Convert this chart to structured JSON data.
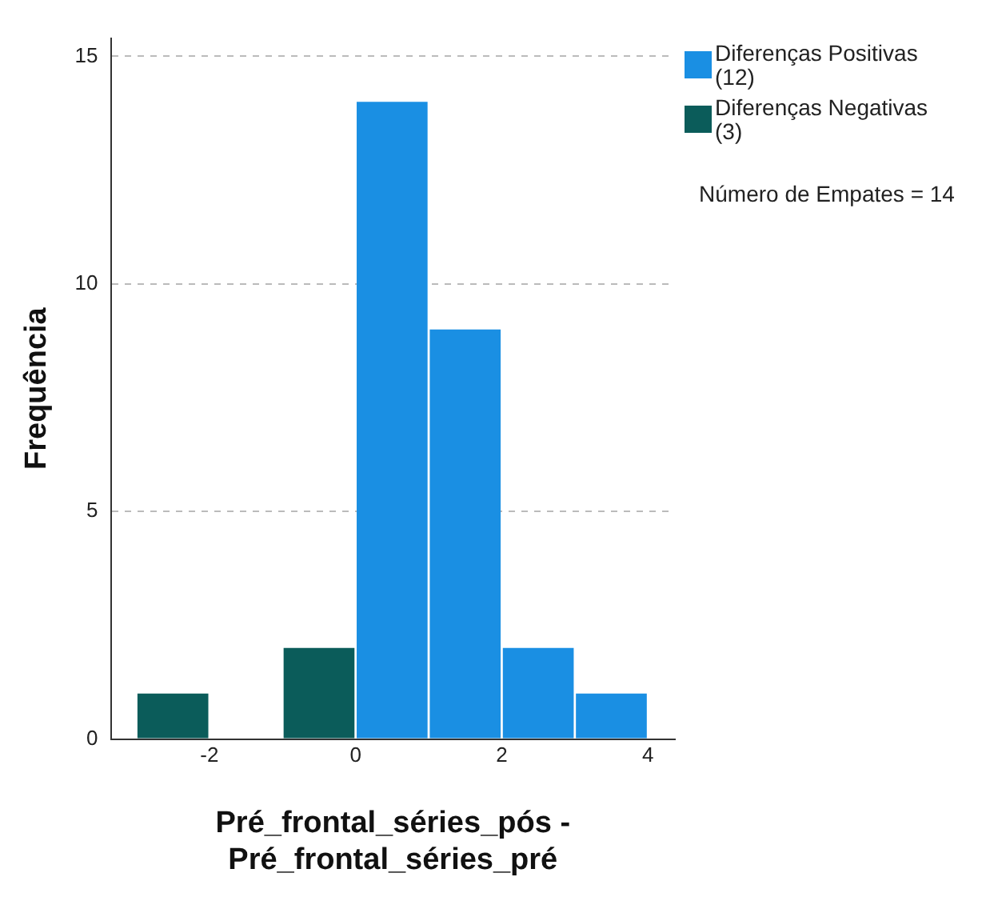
{
  "chart_data": {
    "type": "histogram",
    "xlabel": "Pré_frontal_séries_pós - Pré_frontal_séries_pré",
    "ylabel": "Frequência",
    "bins": [
      -3,
      -2,
      -1,
      0,
      1,
      2,
      3,
      4
    ],
    "series": [
      {
        "name": "Diferenças Positivas (12)",
        "color": "#1a8fe3",
        "values": [
          null,
          null,
          null,
          14,
          9,
          2,
          1
        ]
      },
      {
        "name": "Diferenças Negativas (3)",
        "color": "#0b5c5a",
        "values": [
          1,
          0,
          2,
          null,
          null,
          null,
          null
        ]
      }
    ],
    "xlim": [
      -3.35,
      4.37
    ],
    "xticks": [
      -2,
      0,
      2,
      4
    ],
    "ylim": [
      0,
      15.4
    ],
    "yticks": [
      0,
      5,
      10,
      15
    ],
    "grid": "y",
    "legend": "top right",
    "annotations": [
      "Número de Empates = 14"
    ]
  }
}
